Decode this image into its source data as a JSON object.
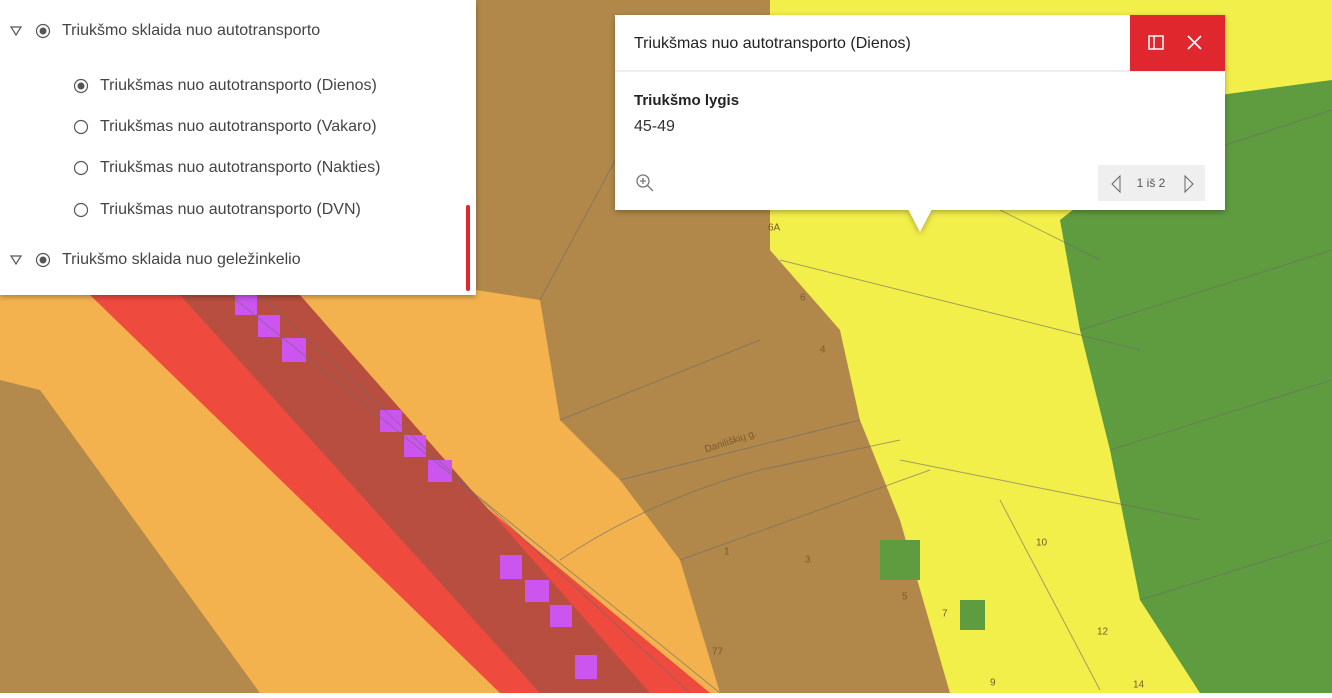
{
  "layer_list": {
    "groups": [
      {
        "label": "Triukšmo sklaida nuo autotransporto",
        "items": [
          "Triukšmas nuo autotransporto (Dienos)",
          "Triukšmas nuo autotransporto (Vakaro)",
          "Triukšmas nuo autotransporto (Nakties)",
          "Triukšmas nuo autotransporto (DVN)"
        ]
      },
      {
        "label": "Triukšmo sklaida nuo geležinkelio"
      }
    ]
  },
  "popup": {
    "title": "Triukšmas nuo autotransporto (Dienos)",
    "field_label": "Triukšmo lygis",
    "field_value": "45-49",
    "pager": "1 iš 2"
  },
  "map_labels": {
    "street": "Daniliškių g.",
    "houses": [
      "6A",
      "6",
      "4",
      "1",
      "3",
      "5",
      "7",
      "10",
      "12",
      "14",
      "77",
      "9"
    ]
  }
}
